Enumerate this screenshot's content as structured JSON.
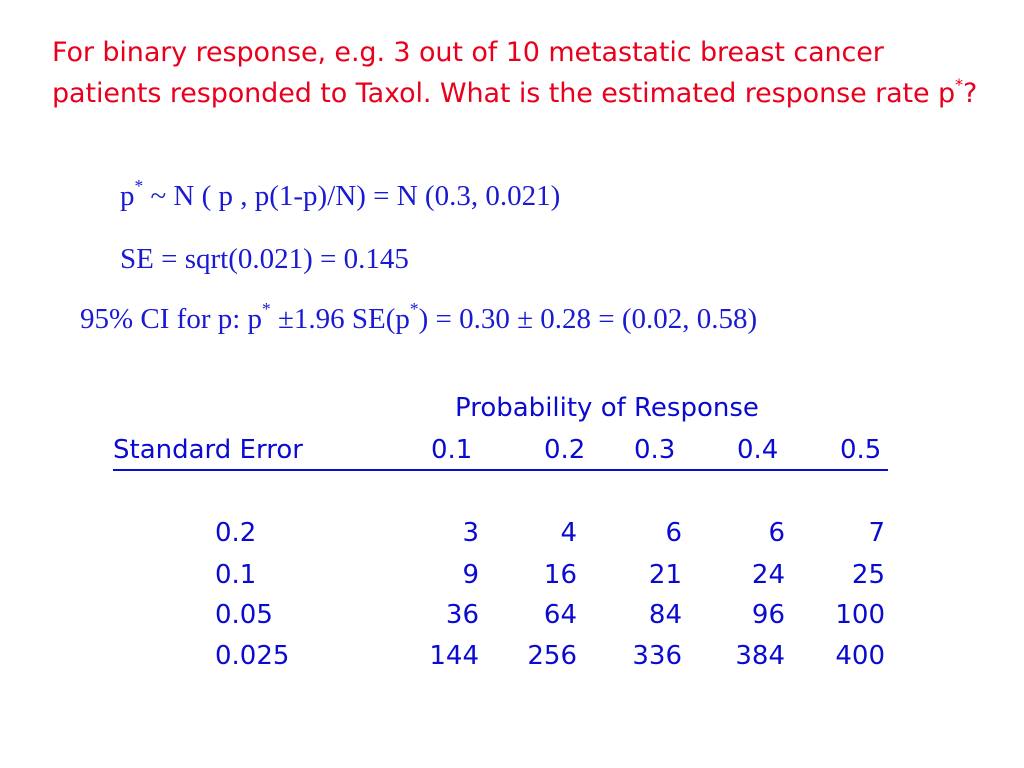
{
  "intro": {
    "line_main": "For binary response, e.g. 3 out of 10 metastatic breast cancer patients responded to Taxol. What is the estimated response rate p",
    "sup": "*",
    "tail": "?"
  },
  "formulas": {
    "f1_a": "p",
    "f1_sup": "*",
    "f1_b": " ~ N ( p , p(1-p)/N) = N (0.3, 0.021)",
    "f2": "SE = sqrt(0.021) = 0.145",
    "f3_a": "95% CI for p: p",
    "f3_sup1": "*",
    "f3_b": " ±1.96 SE(p",
    "f3_sup2": "*",
    "f3_c": ") = 0.30 ± 0.28 = (0.02, 0.58)"
  },
  "table": {
    "prob_header": "Probability of Response",
    "se_header": "Standard Error",
    "columns": [
      "0.1",
      "0.2",
      "0.3",
      "0.4",
      "0.5"
    ],
    "rows": [
      {
        "se": "0.2",
        "values": [
          "3",
          "4",
          "6",
          "6",
          "7"
        ]
      },
      {
        "se": "0.1",
        "values": [
          "9",
          "16",
          "21",
          "24",
          "25"
        ]
      },
      {
        "se": "0.05",
        "values": [
          "36",
          "64",
          "84",
          "96",
          "100"
        ]
      },
      {
        "se": "0.025",
        "values": [
          "144",
          "256",
          "336",
          "384",
          "400"
        ]
      }
    ]
  },
  "colors": {
    "title_red": "#e8001c",
    "formula_blue": "#1a1ad2",
    "table_navy": "#0a0ad0"
  }
}
